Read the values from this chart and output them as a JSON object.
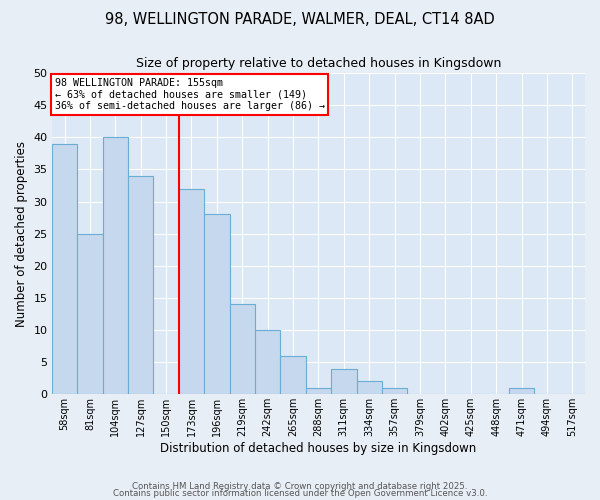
{
  "title_line1": "98, WELLINGTON PARADE, WALMER, DEAL, CT14 8AD",
  "title_line2": "Size of property relative to detached houses in Kingsdown",
  "xlabel": "Distribution of detached houses by size in Kingsdown",
  "ylabel": "Number of detached properties",
  "categories": [
    "58sqm",
    "81sqm",
    "104sqm",
    "127sqm",
    "150sqm",
    "173sqm",
    "196sqm",
    "219sqm",
    "242sqm",
    "265sqm",
    "288sqm",
    "311sqm",
    "334sqm",
    "357sqm",
    "379sqm",
    "402sqm",
    "425sqm",
    "448sqm",
    "471sqm",
    "494sqm",
    "517sqm"
  ],
  "values": [
    39,
    25,
    40,
    34,
    0,
    32,
    28,
    14,
    10,
    6,
    1,
    4,
    2,
    1,
    0,
    0,
    0,
    0,
    1,
    0,
    0
  ],
  "bar_color": "#c5d8ed",
  "bar_edge_color": "#6aaed6",
  "red_line_x": 4.5,
  "annotation_title": "98 WELLINGTON PARADE: 155sqm",
  "annotation_line1": "← 63% of detached houses are smaller (149)",
  "annotation_line2": "36% of semi-detached houses are larger (86) →",
  "ylim": [
    0,
    50
  ],
  "yticks": [
    0,
    5,
    10,
    15,
    20,
    25,
    30,
    35,
    40,
    45,
    50
  ],
  "fig_bg": "#e8eef5",
  "plot_bg": "#dce8f5",
  "grid_color": "#ffffff",
  "footer_line1": "Contains HM Land Registry data © Crown copyright and database right 2025.",
  "footer_line2": "Contains public sector information licensed under the Open Government Licence v3.0."
}
